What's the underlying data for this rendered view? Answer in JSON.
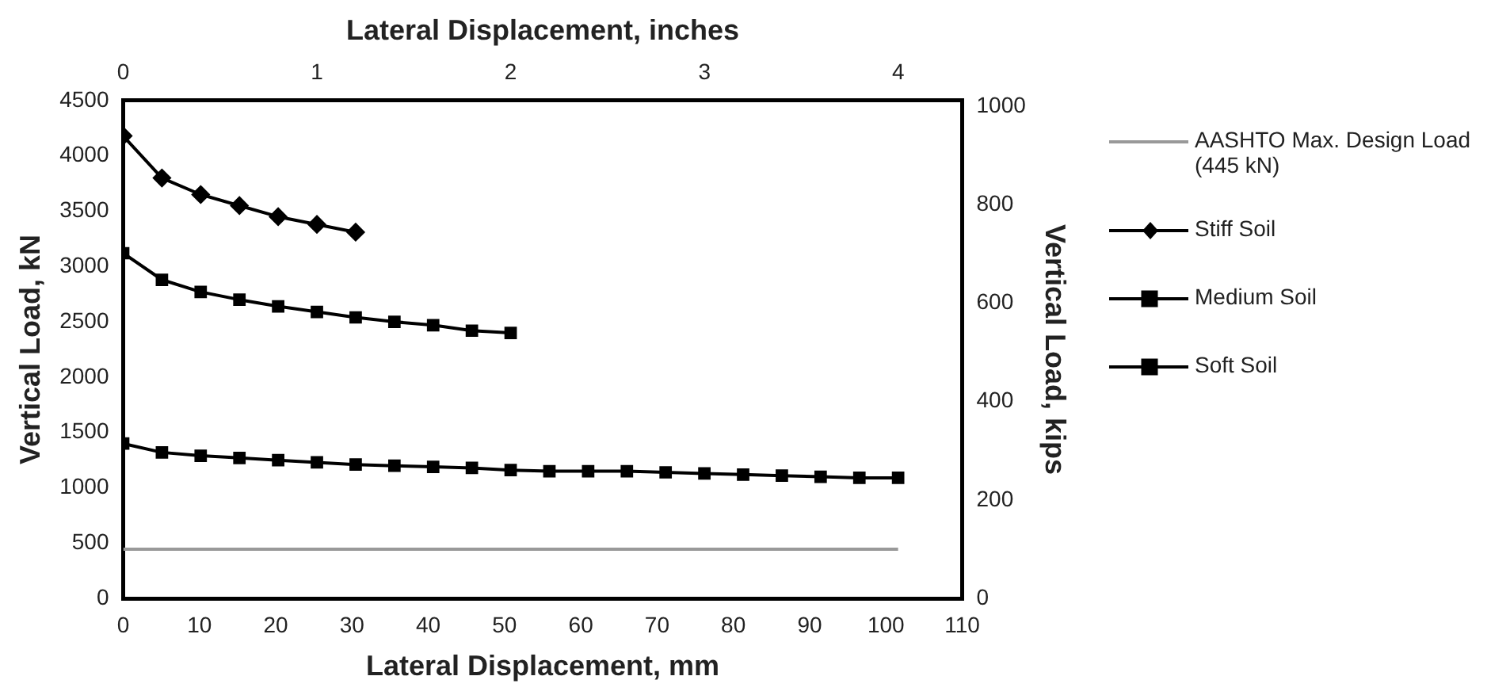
{
  "chart_data": {
    "type": "line",
    "xlabel": "Lateral Displacement, mm",
    "x2label": "Lateral Displacement, inches",
    "ylabel": "Vertical Load, kN",
    "y2label": "Vertical Load, kips",
    "xlim": [
      0,
      110
    ],
    "xticks": [
      0,
      10,
      20,
      30,
      40,
      50,
      60,
      70,
      80,
      90,
      100,
      110
    ],
    "x2lim": [
      0,
      4.33
    ],
    "x2ticks": [
      0,
      1,
      2,
      3,
      4
    ],
    "ylim": [
      0,
      4500
    ],
    "yticks": [
      0,
      500,
      1000,
      1500,
      2000,
      2500,
      3000,
      3500,
      4000,
      4500
    ],
    "y2lim": [
      0,
      1011.6
    ],
    "y2ticks": [
      0,
      200,
      400,
      600,
      800,
      1000
    ],
    "grid": false,
    "legend": "right",
    "line_style": "solid",
    "series": [
      {
        "name": "AASHTO Max. Design Load (445 kN)",
        "color": "#999999",
        "marker": "none",
        "x": [
          0,
          101.6
        ],
        "values": [
          445,
          445
        ]
      },
      {
        "name": "Stiff Soil",
        "color": "#000000",
        "marker": "diamond",
        "x": [
          0,
          5.08,
          10.16,
          15.24,
          20.32,
          25.4,
          30.48
        ],
        "values": [
          4180,
          3800,
          3650,
          3550,
          3450,
          3380,
          3310
        ]
      },
      {
        "name": "Medium Soil",
        "color": "#000000",
        "marker": "square",
        "x": [
          0,
          5.08,
          10.16,
          15.24,
          20.32,
          25.4,
          30.48,
          35.56,
          40.64,
          45.72,
          50.8
        ],
        "values": [
          3120,
          2880,
          2770,
          2700,
          2640,
          2590,
          2540,
          2500,
          2470,
          2420,
          2400
        ]
      },
      {
        "name": "Soft Soil",
        "color": "#000000",
        "marker": "square",
        "x": [
          0,
          5.08,
          10.16,
          15.24,
          20.32,
          25.4,
          30.48,
          35.56,
          40.64,
          45.72,
          50.8,
          55.88,
          60.96,
          66.04,
          71.12,
          76.2,
          81.28,
          86.36,
          91.44,
          96.52,
          101.6
        ],
        "values": [
          1400,
          1320,
          1290,
          1270,
          1250,
          1230,
          1210,
          1200,
          1190,
          1180,
          1160,
          1150,
          1150,
          1150,
          1140,
          1130,
          1120,
          1110,
          1100,
          1090,
          1090
        ]
      }
    ]
  }
}
